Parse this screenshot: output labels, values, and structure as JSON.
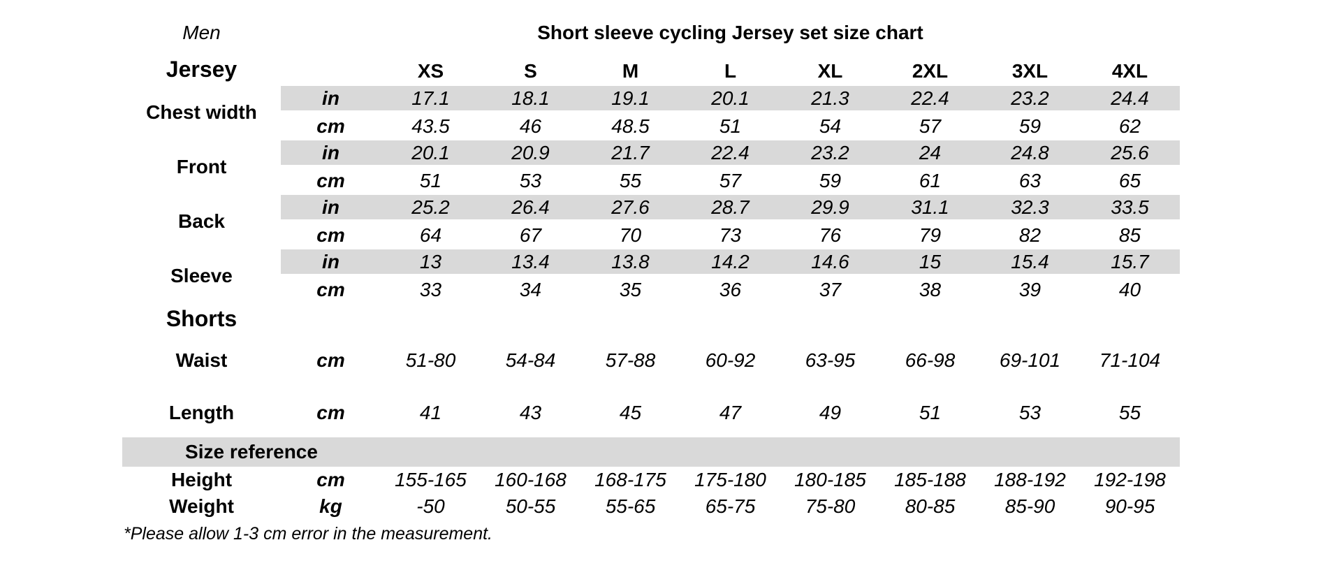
{
  "chart_data": {
    "type": "table",
    "gender": "Men",
    "title": "Short sleeve cycling Jersey set size chart",
    "sizes": [
      "XS",
      "S",
      "M",
      "L",
      "XL",
      "2XL",
      "3XL",
      "4XL"
    ],
    "section_jersey": "Jersey",
    "section_shorts": "Shorts",
    "section_size_reference": "Size reference",
    "units": {
      "in": "in",
      "cm": "cm",
      "kg": "kg"
    },
    "jersey": [
      {
        "label": "Chest width",
        "in": [
          "17.1",
          "18.1",
          "19.1",
          "20.1",
          "21.3",
          "22.4",
          "23.2",
          "24.4"
        ],
        "cm": [
          "43.5",
          "46",
          "48.5",
          "51",
          "54",
          "57",
          "59",
          "62"
        ]
      },
      {
        "label": "Front",
        "in": [
          "20.1",
          "20.9",
          "21.7",
          "22.4",
          "23.2",
          "24",
          "24.8",
          "25.6"
        ],
        "cm": [
          "51",
          "53",
          "55",
          "57",
          "59",
          "61",
          "63",
          "65"
        ]
      },
      {
        "label": "Back",
        "in": [
          "25.2",
          "26.4",
          "27.6",
          "28.7",
          "29.9",
          "31.1",
          "32.3",
          "33.5"
        ],
        "cm": [
          "64",
          "67",
          "70",
          "73",
          "76",
          "79",
          "82",
          "85"
        ]
      },
      {
        "label": "Sleeve",
        "in": [
          "13",
          "13.4",
          "13.8",
          "14.2",
          "14.6",
          "15",
          "15.4",
          "15.7"
        ],
        "cm": [
          "33",
          "34",
          "35",
          "36",
          "37",
          "38",
          "39",
          "40"
        ]
      }
    ],
    "shorts": [
      {
        "label": "Waist",
        "unit": "cm",
        "values": [
          "51-80",
          "54-84",
          "57-88",
          "60-92",
          "63-95",
          "66-98",
          "69-101",
          "71-104"
        ]
      },
      {
        "label": "Length",
        "unit": "cm",
        "values": [
          "41",
          "43",
          "45",
          "47",
          "49",
          "51",
          "53",
          "55"
        ]
      }
    ],
    "size_reference": [
      {
        "label": "Height",
        "unit": "cm",
        "values": [
          "155-165",
          "160-168",
          "168-175",
          "175-180",
          "180-185",
          "185-188",
          "188-192",
          "192-198"
        ]
      },
      {
        "label": "Weight",
        "unit": "kg",
        "values": [
          "-50",
          "50-55",
          "55-65",
          "65-75",
          "75-80",
          "80-85",
          "85-90",
          "90-95"
        ]
      }
    ],
    "footnote": "*Please allow 1-3 cm error in the measurement."
  }
}
